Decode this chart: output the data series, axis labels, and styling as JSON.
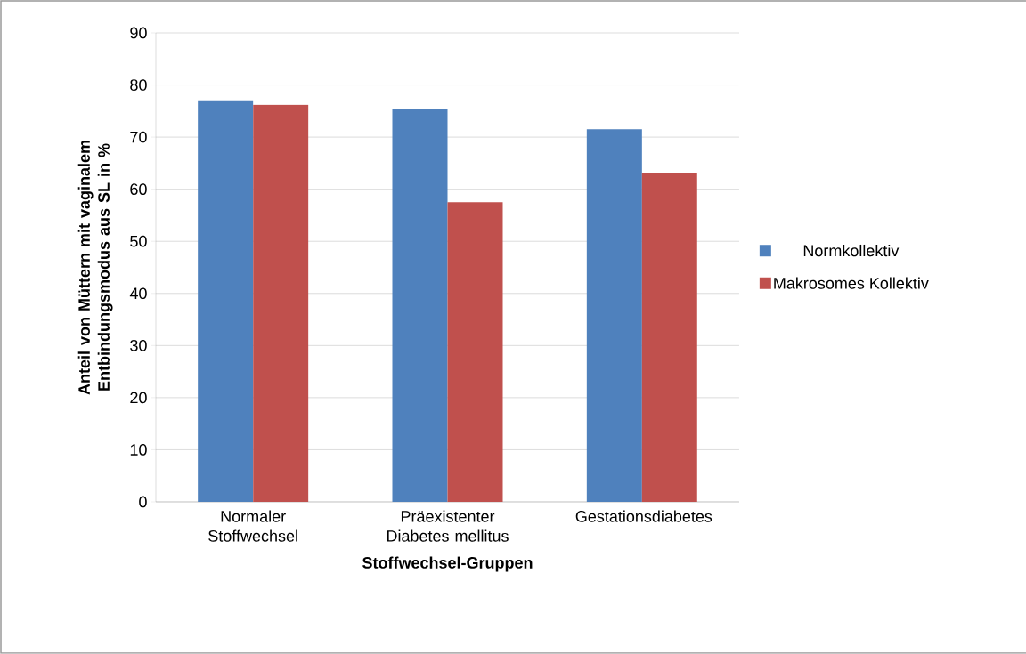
{
  "chart_data": {
    "type": "bar",
    "xlabel": "Stoffwechsel-Gruppen",
    "ylabel": "Anteil von Müttern mit vaginalem Entbindungsmodus aus SL in %",
    "categories": [
      "Normaler Stoffwechsel",
      "Präexistenter Diabetes mellitus",
      "Gestationsdiabetes"
    ],
    "series": [
      {
        "name": "Normkollektiv",
        "color": "#4f81bd",
        "values": [
          77.1,
          75.5,
          71.5
        ]
      },
      {
        "name": "Makrosomes Kollektiv",
        "color": "#c0504d",
        "values": [
          76.2,
          57.5,
          63.2
        ]
      }
    ],
    "ylim": [
      0,
      90
    ],
    "yticks": [
      0,
      10,
      20,
      30,
      40,
      50,
      60,
      70,
      80,
      90
    ],
    "grid": "y",
    "legend": "right"
  }
}
